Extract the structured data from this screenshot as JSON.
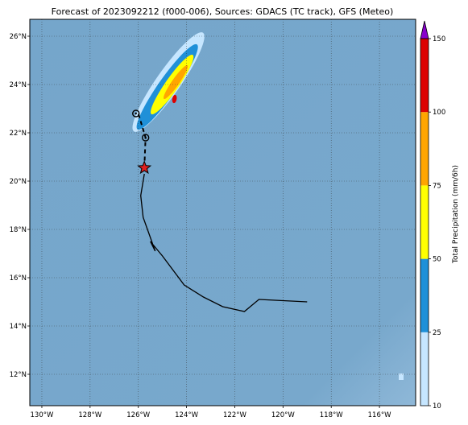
{
  "title": "Forecast of 2023092212 (f000-006), Sources: GDACS (TC track), GFS (Meteo)",
  "map": {
    "lon_range": [
      -130.5,
      -114.5
    ],
    "lat_range": [
      10.7,
      26.7
    ],
    "ocean_color": "#78a8cc",
    "x_ticks": [
      "130°W",
      "128°W",
      "126°W",
      "124°W",
      "122°W",
      "120°W",
      "118°W",
      "116°W"
    ],
    "x_tick_values": [
      -130,
      -128,
      -126,
      -124,
      -122,
      -120,
      -118,
      -116
    ],
    "y_ticks": [
      "12°N",
      "14°N",
      "16°N",
      "18°N",
      "20°N",
      "22°N",
      "24°N",
      "26°N"
    ],
    "y_tick_values": [
      12,
      14,
      16,
      18,
      20,
      22,
      24,
      26
    ],
    "grid": "dotted"
  },
  "track": {
    "past": [
      [
        -119.0,
        15.0
      ],
      [
        -121.0,
        15.1
      ],
      [
        -121.6,
        14.6
      ],
      [
        -122.5,
        14.8
      ],
      [
        -123.3,
        15.2
      ],
      [
        -124.1,
        15.7
      ],
      [
        -125.0,
        16.9
      ],
      [
        -125.5,
        17.5
      ],
      [
        -125.3,
        17.1
      ],
      [
        -125.8,
        18.5
      ],
      [
        -125.9,
        19.4
      ],
      [
        -125.75,
        20.3
      ]
    ],
    "current": [
      -125.75,
      20.55
    ],
    "forecast": [
      [
        -125.75,
        20.55
      ],
      [
        -125.7,
        21.8
      ],
      [
        -126.0,
        22.8
      ]
    ],
    "forecast_points": [
      [
        -125.7,
        21.8
      ],
      [
        -126.1,
        22.8
      ]
    ],
    "current_marker": "star-icon",
    "current_color": "#e02020"
  },
  "colorbar": {
    "label": "Total Precipitation (mm/6h)",
    "ticks": [
      "10",
      "25",
      "50",
      "75",
      "100",
      "150"
    ],
    "colors": [
      "#c6e6ff",
      "#1f90d8",
      "#ffff00",
      "#ffa500",
      "#dd0000",
      "#8800cc"
    ]
  },
  "precip": {
    "bands": [
      {
        "level": "10",
        "color": "#c6e6ff",
        "center": [
          -124.75,
          24.1
        ],
        "length_deg": 5.0,
        "width_deg": 1.0,
        "angle_deg": -55
      },
      {
        "level": "25",
        "color": "#1f90d8",
        "center": [
          -124.8,
          23.9
        ],
        "length_deg": 4.3,
        "width_deg": 0.75,
        "angle_deg": -55
      },
      {
        "level": "50",
        "color": "#ffff00",
        "center": [
          -124.6,
          24.0
        ],
        "length_deg": 3.0,
        "width_deg": 0.55,
        "angle_deg": -55
      },
      {
        "level": "75",
        "color": "#ffa500",
        "center": [
          -124.45,
          24.1
        ],
        "length_deg": 1.7,
        "width_deg": 0.3,
        "angle_deg": -55
      },
      {
        "level": "100",
        "color": "#dd0000",
        "center": [
          -124.5,
          23.4
        ],
        "length_deg": 0.35,
        "width_deg": 0.18,
        "angle_deg": -80
      }
    ],
    "small_patch": {
      "color": "#c6e6ff",
      "center": [
        -115.1,
        11.9
      ]
    }
  }
}
